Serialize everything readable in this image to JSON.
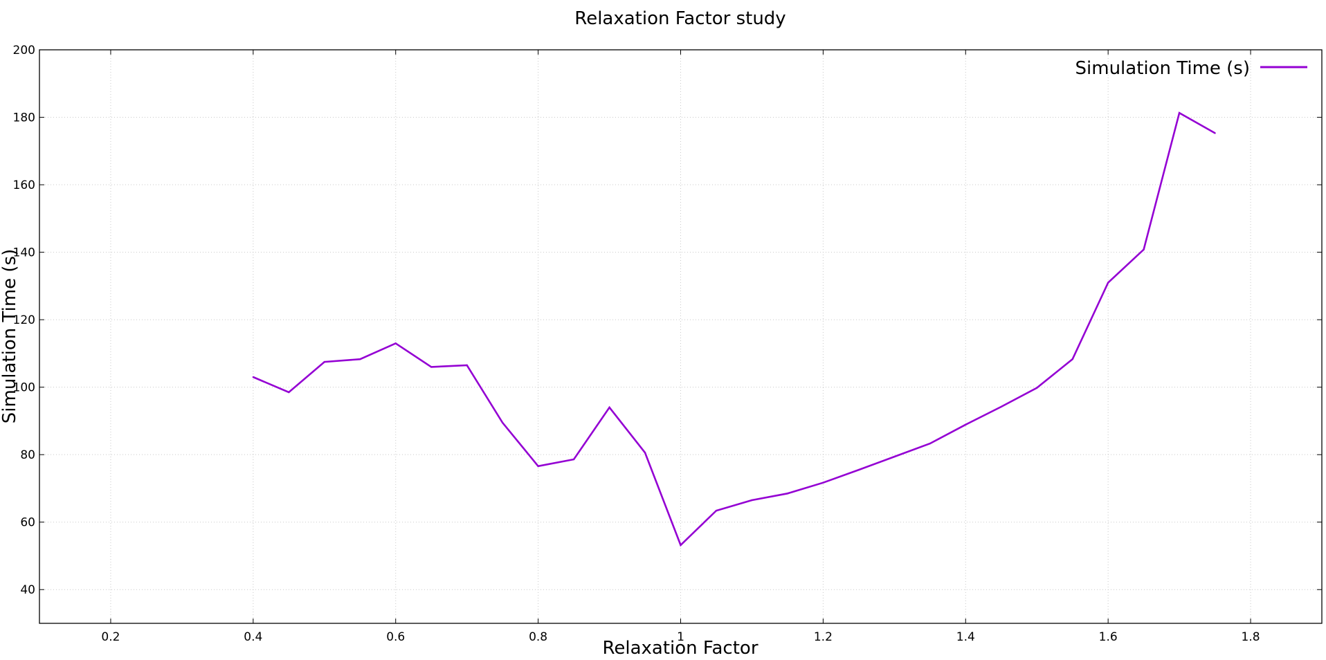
{
  "chart_data": {
    "type": "line",
    "title": "Relaxation Factor study",
    "xlabel": "Relaxation Factor",
    "ylabel": "Simulation Time (s)",
    "xlim": [
      0.1,
      1.9
    ],
    "ylim": [
      30,
      200
    ],
    "x_ticks": [
      0.2,
      0.4,
      0.6,
      0.8,
      1.0,
      1.2,
      1.4,
      1.6,
      1.8
    ],
    "x_tick_labels": [
      "0.2",
      "0.4",
      "0.6",
      "0.8",
      "1",
      "1.2",
      "1.4",
      "1.6",
      "1.8"
    ],
    "y_ticks": [
      40,
      60,
      80,
      100,
      120,
      140,
      160,
      180,
      200
    ],
    "y_tick_labels": [
      "40",
      "60",
      "80",
      "100",
      "120",
      "140",
      "160",
      "180",
      "200"
    ],
    "grid": true,
    "legend_position": "top-right",
    "series": [
      {
        "name": "Simulation Time (s)",
        "color": "#9400d3",
        "x": [
          0.4,
          0.45,
          0.5,
          0.55,
          0.6,
          0.65,
          0.7,
          0.75,
          0.8,
          0.85,
          0.9,
          0.95,
          1.0,
          1.05,
          1.1,
          1.15,
          1.2,
          1.25,
          1.3,
          1.35,
          1.4,
          1.45,
          1.5,
          1.55,
          1.6,
          1.65,
          1.7,
          1.75
        ],
        "y": [
          103,
          98.5,
          107.5,
          108.3,
          113,
          106,
          106.5,
          89.5,
          76.6,
          78.6,
          94,
          80.6,
          53.2,
          63.4,
          66.5,
          68.5,
          71.7,
          75.5,
          79.4,
          83.3,
          88.9,
          94.2,
          99.8,
          108.3,
          131,
          140.8,
          181.3,
          175.3
        ]
      }
    ]
  }
}
